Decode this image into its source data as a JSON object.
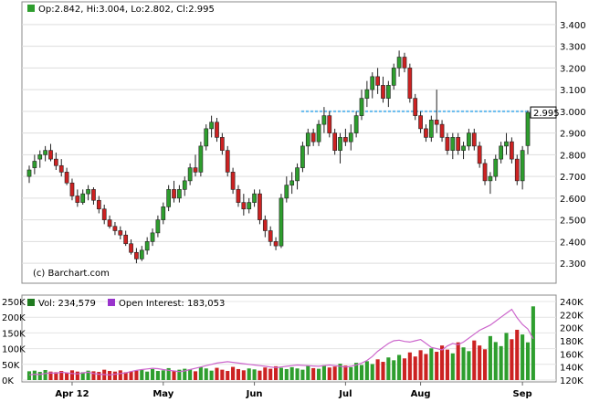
{
  "chart_data": [
    {
      "type": "candlestick",
      "legend": {
        "ohlc_text": "Op:2.842, Hi:3.004, Lo:2.802, Cl:2.995"
      },
      "watermark": "(c) Barchart.com",
      "y_ticks": [
        "3.400",
        "3.300",
        "3.200",
        "3.100",
        "3.000",
        "2.900",
        "2.800",
        "2.700",
        "2.600",
        "2.500",
        "2.400",
        "2.300"
      ],
      "ylim": [
        2.25,
        3.45
      ],
      "last_price_label": "2.995",
      "resistance_level": 3.0,
      "grid": true,
      "colors": {
        "up": "#2e9e2e",
        "down": "#cc2222",
        "resistance": "#66bbee",
        "price_tag": "#ffffff"
      },
      "candles": [
        [
          2.7,
          2.75,
          2.67,
          2.73
        ],
        [
          2.74,
          2.8,
          2.71,
          2.77
        ],
        [
          2.78,
          2.82,
          2.74,
          2.8
        ],
        [
          2.8,
          2.84,
          2.77,
          2.82
        ],
        [
          2.82,
          2.85,
          2.77,
          2.78
        ],
        [
          2.78,
          2.81,
          2.73,
          2.75
        ],
        [
          2.75,
          2.78,
          2.7,
          2.72
        ],
        [
          2.72,
          2.74,
          2.66,
          2.67
        ],
        [
          2.67,
          2.69,
          2.59,
          2.61
        ],
        [
          2.61,
          2.64,
          2.56,
          2.58
        ],
        [
          2.58,
          2.64,
          2.57,
          2.62
        ],
        [
          2.62,
          2.66,
          2.59,
          2.64
        ],
        [
          2.64,
          2.65,
          2.57,
          2.59
        ],
        [
          2.59,
          2.61,
          2.53,
          2.55
        ],
        [
          2.55,
          2.57,
          2.48,
          2.5
        ],
        [
          2.5,
          2.52,
          2.46,
          2.47
        ],
        [
          2.47,
          2.49,
          2.43,
          2.45
        ],
        [
          2.45,
          2.47,
          2.41,
          2.43
        ],
        [
          2.43,
          2.45,
          2.38,
          2.39
        ],
        [
          2.39,
          2.41,
          2.34,
          2.35
        ],
        [
          2.35,
          2.37,
          2.3,
          2.32
        ],
        [
          2.32,
          2.38,
          2.31,
          2.36
        ],
        [
          2.36,
          2.42,
          2.34,
          2.4
        ],
        [
          2.4,
          2.46,
          2.38,
          2.44
        ],
        [
          2.44,
          2.52,
          2.42,
          2.5
        ],
        [
          2.5,
          2.58,
          2.48,
          2.56
        ],
        [
          2.56,
          2.66,
          2.54,
          2.64
        ],
        [
          2.64,
          2.68,
          2.58,
          2.6
        ],
        [
          2.6,
          2.66,
          2.58,
          2.64
        ],
        [
          2.64,
          2.7,
          2.61,
          2.68
        ],
        [
          2.68,
          2.76,
          2.66,
          2.74
        ],
        [
          2.74,
          2.8,
          2.7,
          2.72
        ],
        [
          2.72,
          2.86,
          2.7,
          2.84
        ],
        [
          2.84,
          2.94,
          2.82,
          2.92
        ],
        [
          2.92,
          2.98,
          2.88,
          2.95
        ],
        [
          2.95,
          2.97,
          2.86,
          2.88
        ],
        [
          2.88,
          2.9,
          2.8,
          2.82
        ],
        [
          2.82,
          2.84,
          2.7,
          2.72
        ],
        [
          2.72,
          2.74,
          2.62,
          2.64
        ],
        [
          2.64,
          2.66,
          2.56,
          2.58
        ],
        [
          2.58,
          2.62,
          2.52,
          2.55
        ],
        [
          2.55,
          2.6,
          2.53,
          2.58
        ],
        [
          2.58,
          2.64,
          2.56,
          2.62
        ],
        [
          2.62,
          2.64,
          2.48,
          2.5
        ],
        [
          2.5,
          2.52,
          2.42,
          2.45
        ],
        [
          2.45,
          2.47,
          2.38,
          2.4
        ],
        [
          2.4,
          2.42,
          2.36,
          2.38
        ],
        [
          2.38,
          2.62,
          2.37,
          2.6
        ],
        [
          2.6,
          2.7,
          2.58,
          2.66
        ],
        [
          2.66,
          2.72,
          2.62,
          2.68
        ],
        [
          2.68,
          2.76,
          2.64,
          2.74
        ],
        [
          2.74,
          2.86,
          2.72,
          2.84
        ],
        [
          2.84,
          2.92,
          2.8,
          2.9
        ],
        [
          2.9,
          2.92,
          2.84,
          2.86
        ],
        [
          2.86,
          2.96,
          2.84,
          2.94
        ],
        [
          2.94,
          3.02,
          2.9,
          2.98
        ],
        [
          2.98,
          3.0,
          2.88,
          2.9
        ],
        [
          2.9,
          2.92,
          2.8,
          2.82
        ],
        [
          2.82,
          2.9,
          2.76,
          2.88
        ],
        [
          2.88,
          2.92,
          2.84,
          2.86
        ],
        [
          2.86,
          2.94,
          2.82,
          2.9
        ],
        [
          2.9,
          3.0,
          2.88,
          2.98
        ],
        [
          2.98,
          3.1,
          2.96,
          3.06
        ],
        [
          3.06,
          3.14,
          3.02,
          3.1
        ],
        [
          3.1,
          3.18,
          3.06,
          3.16
        ],
        [
          3.16,
          3.2,
          3.08,
          3.12
        ],
        [
          3.12,
          3.16,
          3.04,
          3.06
        ],
        [
          3.06,
          3.14,
          3.02,
          3.12
        ],
        [
          3.12,
          3.22,
          3.1,
          3.2
        ],
        [
          3.2,
          3.28,
          3.16,
          3.25
        ],
        [
          3.25,
          3.27,
          3.18,
          3.2
        ],
        [
          3.2,
          3.22,
          3.04,
          3.06
        ],
        [
          3.06,
          3.08,
          2.96,
          2.98
        ],
        [
          2.98,
          3.0,
          2.9,
          2.92
        ],
        [
          2.92,
          2.94,
          2.86,
          2.88
        ],
        [
          2.88,
          2.98,
          2.86,
          2.96
        ],
        [
          2.96,
          3.1,
          2.9,
          2.94
        ],
        [
          2.94,
          2.96,
          2.86,
          2.88
        ],
        [
          2.88,
          2.9,
          2.8,
          2.82
        ],
        [
          2.82,
          2.9,
          2.78,
          2.88
        ],
        [
          2.88,
          2.9,
          2.8,
          2.82
        ],
        [
          2.82,
          2.86,
          2.78,
          2.84
        ],
        [
          2.84,
          2.92,
          2.82,
          2.9
        ],
        [
          2.9,
          2.92,
          2.82,
          2.84
        ],
        [
          2.84,
          2.86,
          2.74,
          2.76
        ],
        [
          2.76,
          2.78,
          2.66,
          2.68
        ],
        [
          2.68,
          2.72,
          2.62,
          2.7
        ],
        [
          2.7,
          2.8,
          2.68,
          2.78
        ],
        [
          2.78,
          2.86,
          2.76,
          2.84
        ],
        [
          2.84,
          2.9,
          2.8,
          2.86
        ],
        [
          2.86,
          2.88,
          2.76,
          2.78
        ],
        [
          2.78,
          2.8,
          2.66,
          2.68
        ],
        [
          2.68,
          2.84,
          2.64,
          2.82
        ],
        [
          2.842,
          3.004,
          2.802,
          2.995
        ]
      ]
    },
    {
      "type": "bar",
      "legend": {
        "vol_text": "Vol: 234,579",
        "oi_text": "Open Interest: 183,053",
        "vol_color": "#1f7a1f",
        "oi_color": "#9933cc"
      },
      "left_ticks": [
        "250K",
        "200K",
        "150K",
        "100K",
        "50K",
        "0K"
      ],
      "right_ticks": [
        "240K",
        "220K",
        "200K",
        "180K",
        "160K",
        "140K",
        "120K"
      ],
      "vol_ylim": [
        0,
        250000
      ],
      "oi_ylim": [
        120000,
        240000
      ],
      "colors": {
        "up": "#2e9e2e",
        "down": "#cc2222",
        "open_interest": "#cc66cc"
      },
      "volume": [
        28000,
        30000,
        26000,
        32000,
        27000,
        25000,
        29000,
        24000,
        31000,
        27000,
        25000,
        30000,
        28000,
        26000,
        33000,
        29000,
        27000,
        31000,
        25000,
        28000,
        30000,
        32000,
        27000,
        35000,
        29000,
        31000,
        38000,
        30000,
        33000,
        36000,
        34000,
        28000,
        41000,
        37000,
        30000,
        39000,
        33000,
        29000,
        42000,
        35000,
        31000,
        37000,
        34000,
        30000,
        40000,
        36000,
        44000,
        39000,
        35000,
        41000,
        37000,
        33000,
        45000,
        38000,
        36000,
        47000,
        40000,
        43000,
        52000,
        46000,
        41000,
        55000,
        48000,
        60000,
        51000,
        66000,
        58000,
        72000,
        63000,
        80000,
        69000,
        88000,
        75000,
        95000,
        83000,
        101000,
        90000,
        110000,
        97000,
        85000,
        120000,
        104000,
        92000,
        126000,
        110000,
        98000,
        140000,
        121000,
        108000,
        150000,
        130000,
        160000,
        145000,
        120000,
        234579
      ],
      "open_interest": [
        128000,
        129000,
        128500,
        130000,
        131000,
        130500,
        132000,
        131000,
        130000,
        129500,
        131000,
        132000,
        130000,
        129000,
        128500,
        128000,
        129000,
        130000,
        131000,
        133000,
        135000,
        136000,
        137000,
        138000,
        137500,
        136000,
        135000,
        134000,
        133000,
        134000,
        136000,
        138000,
        140000,
        142000,
        144000,
        146000,
        147000,
        148000,
        147000,
        146000,
        145000,
        144000,
        143000,
        142000,
        141000,
        140000,
        139000,
        140000,
        141000,
        142000,
        143000,
        142500,
        142000,
        141500,
        141000,
        142000,
        143000,
        142000,
        141000,
        140000,
        141000,
        143000,
        146000,
        150000,
        156000,
        164000,
        170000,
        176000,
        180000,
        181000,
        179000,
        178000,
        180000,
        182000,
        176000,
        170000,
        168000,
        166000,
        172000,
        176000,
        174000,
        178000,
        184000,
        190000,
        196000,
        200000,
        204000,
        210000,
        216000,
        222000,
        228000,
        215000,
        205000,
        198000,
        183053
      ]
    }
  ],
  "x_axis": {
    "labels": [
      "Apr 12",
      "May",
      "Jun",
      "Jul",
      "Aug",
      "Sep"
    ]
  }
}
